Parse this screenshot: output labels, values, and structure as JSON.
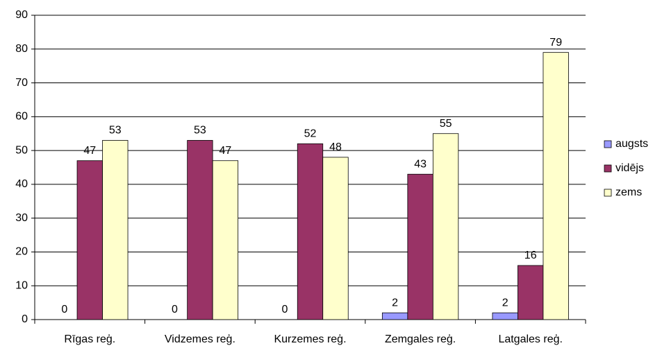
{
  "chart_data": {
    "type": "bar",
    "categories": [
      "Rīgas reģ.",
      "Vidzemes reģ.",
      "Kurzemes reģ.",
      "Zemgales reģ.",
      "Latgales reģ."
    ],
    "series": [
      {
        "name": "augsts",
        "color": "#9999ff",
        "values": [
          0,
          0,
          0,
          2,
          2
        ]
      },
      {
        "name": "vidējs",
        "color": "#993366",
        "values": [
          47,
          53,
          52,
          43,
          16
        ]
      },
      {
        "name": "zems",
        "color": "#ffffcc",
        "values": [
          53,
          47,
          48,
          55,
          79
        ]
      }
    ],
    "ylim": [
      0,
      90
    ],
    "yticks": [
      0,
      10,
      20,
      30,
      40,
      50,
      60,
      70,
      80,
      90
    ],
    "grid": true,
    "legend": "right"
  }
}
